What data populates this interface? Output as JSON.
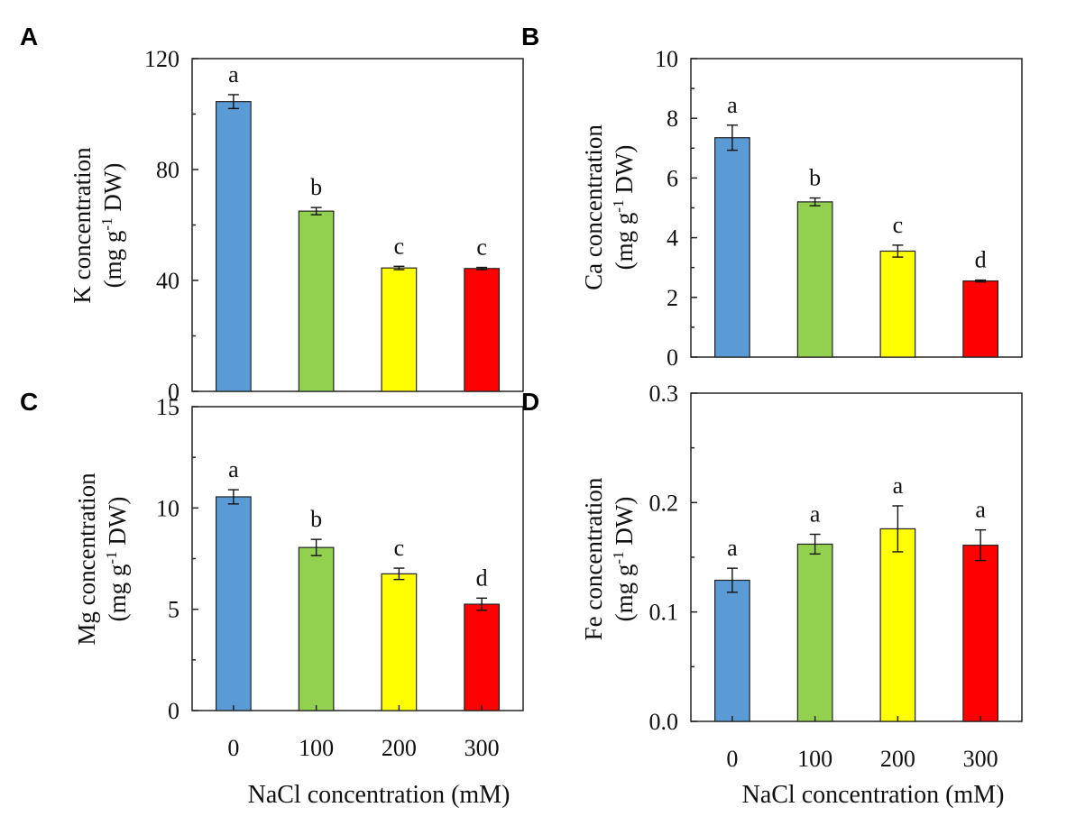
{
  "chart_data": [
    {
      "panel": "A",
      "type": "bar",
      "categories": [
        "0",
        "100",
        "200",
        "300"
      ],
      "values": [
        104.5,
        65,
        44.5,
        44.3
      ],
      "errors": [
        2.5,
        1.3,
        0.6,
        0.4
      ],
      "significance": [
        "a",
        "b",
        "c",
        "c"
      ],
      "ylim": [
        0,
        120
      ],
      "yticks": [
        0,
        40,
        80,
        120
      ],
      "ytick_labels": [
        "0",
        "40",
        "80",
        "120"
      ],
      "minor_yticks": [
        20,
        60,
        100
      ],
      "ylabel_line1": "K concentration",
      "ylabel_line2_pre": "(mg g",
      "ylabel_line2_sup": "-1",
      "ylabel_line2_post": " DW)",
      "xlabel": ""
    },
    {
      "panel": "B",
      "type": "bar",
      "categories": [
        "0",
        "100",
        "200",
        "300"
      ],
      "values": [
        7.35,
        5.2,
        3.55,
        2.55
      ],
      "errors": [
        0.42,
        0.13,
        0.2,
        0.03
      ],
      "significance": [
        "a",
        "b",
        "c",
        "d"
      ],
      "ylim": [
        0,
        10
      ],
      "yticks": [
        0,
        2,
        4,
        6,
        8,
        10
      ],
      "ytick_labels": [
        "0",
        "2",
        "4",
        "6",
        "8",
        "10"
      ],
      "minor_yticks": [
        1,
        3,
        5,
        7,
        9
      ],
      "ylabel_line1": "Ca concentration",
      "ylabel_line2_pre": "(mg g",
      "ylabel_line2_sup": "-1",
      "ylabel_line2_post": " DW)",
      "xlabel": ""
    },
    {
      "panel": "C",
      "type": "bar",
      "categories": [
        "0",
        "100",
        "200",
        "300"
      ],
      "values": [
        10.55,
        8.05,
        6.75,
        5.25
      ],
      "errors": [
        0.35,
        0.4,
        0.28,
        0.3
      ],
      "significance": [
        "a",
        "b",
        "c",
        "d"
      ],
      "ylim": [
        0,
        15
      ],
      "yticks": [
        0,
        5,
        10,
        15
      ],
      "ytick_labels": [
        "0",
        "5",
        "10",
        "15"
      ],
      "minor_yticks": [
        2.5,
        7.5,
        12.5
      ],
      "ylabel_line1": "Mg concentration",
      "ylabel_line2_pre": "(mg g",
      "ylabel_line2_sup": "-1",
      "ylabel_line2_post": " DW)",
      "xlabel": "NaCl concentration  (mM)"
    },
    {
      "panel": "D",
      "type": "bar",
      "categories": [
        "0",
        "100",
        "200",
        "300"
      ],
      "values": [
        0.129,
        0.162,
        0.176,
        0.161
      ],
      "errors": [
        0.011,
        0.009,
        0.021,
        0.014
      ],
      "significance": [
        "a",
        "a",
        "a",
        "a"
      ],
      "ylim": [
        0,
        0.3
      ],
      "yticks": [
        0,
        0.1,
        0.2,
        0.3
      ],
      "ytick_labels": [
        "0.0",
        "0.1",
        "0.2",
        "0.3"
      ],
      "minor_yticks": [
        0.05,
        0.15,
        0.25
      ],
      "ylabel_line1": "Fe concentration",
      "ylabel_line2_pre": "(mg g",
      "ylabel_line2_sup": "-1",
      "ylabel_line2_post": " DW)",
      "xlabel": "NaCl concentration  (mM)"
    }
  ],
  "bar_colors": [
    "#5b9bd5",
    "#92d050",
    "#ffff00",
    "#ff0000"
  ]
}
